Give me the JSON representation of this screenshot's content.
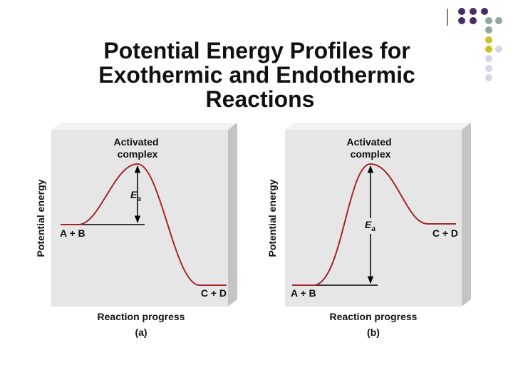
{
  "title": {
    "lines": [
      "Potential Energy Profiles for",
      "Exothermic and Endothermic",
      "Reactions"
    ]
  },
  "panels": [
    {
      "y_label": "Potential energy",
      "x_label": "Reaction progress",
      "caption": "(a)",
      "peak_label": [
        "Activated",
        "complex"
      ],
      "reactants": "A + B",
      "products": "C + D",
      "ea_symbol": "E",
      "ea_subscript": "a"
    },
    {
      "y_label": "Potential energy",
      "x_label": "Reaction progress",
      "caption": "(b)",
      "peak_label": [
        "Activated",
        "complex"
      ],
      "reactants": "A + B",
      "products": "C + D",
      "ea_symbol": "E",
      "ea_subscript": "a"
    }
  ]
}
